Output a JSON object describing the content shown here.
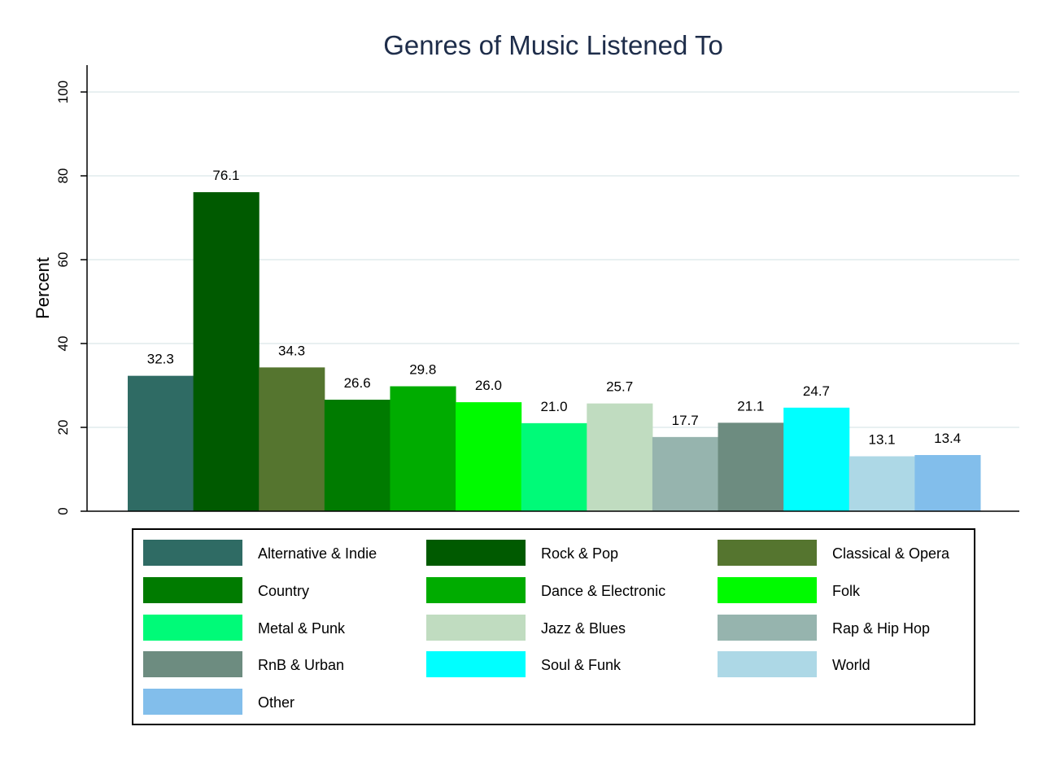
{
  "chart_data": {
    "type": "bar",
    "title": "Genres of Music Listened To",
    "xlabel": "",
    "ylabel": "Percent",
    "ylim": [
      0,
      105
    ],
    "yticks": [
      0,
      20,
      40,
      60,
      80,
      100
    ],
    "grid": true,
    "legend_position": "bottom",
    "series": [
      {
        "name": "Alternative & Indie",
        "value": 32.3,
        "label": "32.3",
        "color": "#2f6b64"
      },
      {
        "name": "Rock & Pop",
        "value": 76.1,
        "label": "76.1",
        "color": "#005a00"
      },
      {
        "name": "Classical & Opera",
        "value": 34.3,
        "label": "34.3",
        "color": "#55752f"
      },
      {
        "name": "Country",
        "value": 26.6,
        "label": "26.6",
        "color": "#007b00"
      },
      {
        "name": "Dance & Electronic",
        "value": 29.8,
        "label": "29.8",
        "color": "#00ac00"
      },
      {
        "name": "Folk",
        "value": 26.0,
        "label": "26.0",
        "color": "#00fa00"
      },
      {
        "name": "Metal & Punk",
        "value": 21.0,
        "label": "21.0",
        "color": "#00fa78"
      },
      {
        "name": "Jazz & Blues",
        "value": 25.7,
        "label": "25.7",
        "color": "#c0dcc0"
      },
      {
        "name": "Rap & Hip Hop",
        "value": 17.7,
        "label": "17.7",
        "color": "#96b4ae"
      },
      {
        "name": "RnB & Urban",
        "value": 21.1,
        "label": "21.1",
        "color": "#6d8c80"
      },
      {
        "name": "Soul & Funk",
        "value": 24.7,
        "label": "24.7",
        "color": "#00ffff"
      },
      {
        "name": "World",
        "value": 13.1,
        "label": "13.1",
        "color": "#add8e6"
      },
      {
        "name": "Other",
        "value": 13.4,
        "label": "13.4",
        "color": "#82beeb"
      }
    ]
  }
}
